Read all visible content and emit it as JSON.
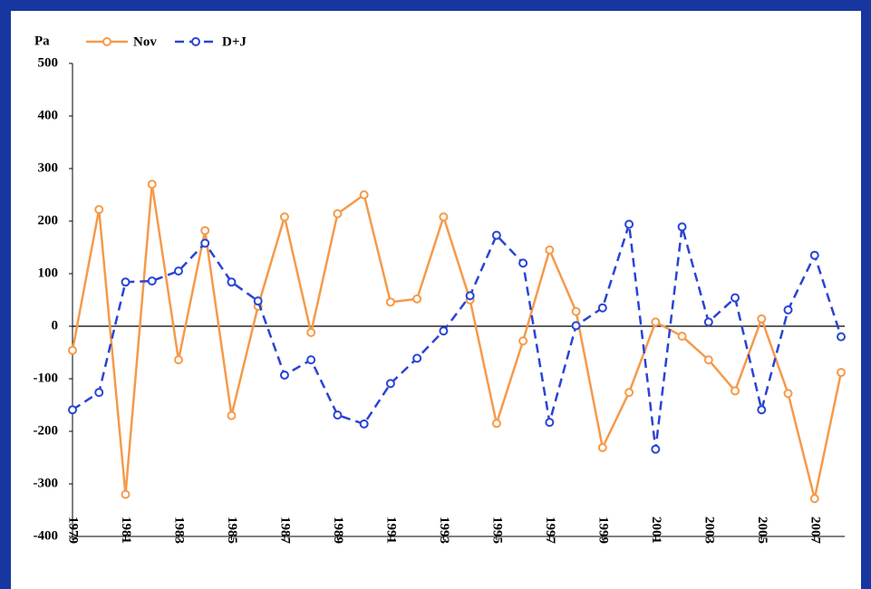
{
  "chart_data": {
    "type": "line",
    "y_label": "Pa",
    "x": [
      1979,
      1980,
      1981,
      1982,
      1983,
      1984,
      1985,
      1986,
      1987,
      1988,
      1989,
      1990,
      1991,
      1992,
      1993,
      1994,
      1995,
      1996,
      1997,
      1998,
      1999,
      2000,
      2001,
      2002,
      2003,
      2004,
      2005,
      2006,
      2007,
      2008
    ],
    "series": [
      {
        "name": "Nov",
        "color": "#f59a4a",
        "dashed": false,
        "values": [
          -46,
          222,
          -320,
          270,
          -64,
          182,
          -170,
          38,
          208,
          -12,
          214,
          250,
          46,
          52,
          208,
          50,
          -185,
          -28,
          145,
          28,
          -231,
          -126,
          8,
          -19,
          -64,
          -123,
          14,
          -128,
          -328,
          -88
        ]
      },
      {
        "name": "D+J",
        "color": "#2a44d4",
        "dashed": true,
        "values": [
          -159,
          -126,
          84,
          86,
          105,
          158,
          84,
          48,
          -93,
          -64,
          -169,
          -186,
          -109,
          -61,
          -9,
          58,
          173,
          120,
          -183,
          1,
          35,
          194,
          -234,
          189,
          8,
          54,
          -159,
          31,
          135,
          -20
        ]
      }
    ],
    "xlim": [
      1979,
      2008
    ],
    "xticks": [
      1979,
      1981,
      1983,
      1985,
      1987,
      1989,
      1991,
      1993,
      1995,
      1997,
      1999,
      2001,
      2003,
      2005,
      2007
    ],
    "ylim": [
      -400,
      500
    ],
    "yticks": [
      -400,
      -300,
      -200,
      -100,
      0,
      100,
      200,
      300,
      400,
      500
    ],
    "legend": "top"
  }
}
